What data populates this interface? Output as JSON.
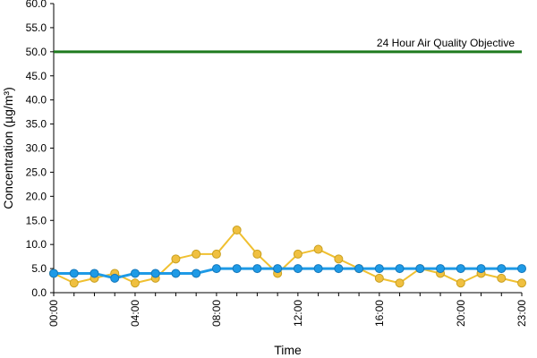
{
  "chart_data": {
    "type": "line",
    "xlabel": "Time",
    "ylabel": "Concentration (µg/m³)",
    "ylim": [
      0,
      60
    ],
    "yticks": [
      "0.0",
      "5.0",
      "10.0",
      "15.0",
      "20.0",
      "25.0",
      "30.0",
      "35.0",
      "40.0",
      "45.0",
      "50.0",
      "55.0",
      "60.0"
    ],
    "x_hours": [
      0,
      1,
      2,
      3,
      4,
      5,
      6,
      7,
      8,
      9,
      10,
      11,
      12,
      13,
      14,
      15,
      16,
      17,
      18,
      19,
      20,
      21,
      22,
      23
    ],
    "xticks": [
      {
        "hour": 0,
        "label": "00:00"
      },
      {
        "hour": 4,
        "label": "04:00"
      },
      {
        "hour": 8,
        "label": "08:00"
      },
      {
        "hour": 12,
        "label": "12:00"
      },
      {
        "hour": 16,
        "label": "16:00"
      },
      {
        "hour": 20,
        "label": "20:00"
      },
      {
        "hour": 23,
        "label": "23:00"
      }
    ],
    "series": [
      {
        "color": "#f0c030",
        "marker_color": "#f0c040",
        "values": [
          4,
          2,
          3,
          4,
          2,
          3,
          7,
          8,
          8,
          13,
          8,
          4,
          8,
          9,
          7,
          5,
          3,
          2,
          5,
          4,
          2,
          4,
          3,
          2
        ]
      },
      {
        "color": "#1e9ae6",
        "marker_color": "#1e9ae6",
        "values": [
          4,
          4,
          4,
          3,
          4,
          4,
          4,
          4,
          5,
          5,
          5,
          5,
          5,
          5,
          5,
          5,
          5,
          5,
          5,
          5,
          5,
          5,
          5,
          5
        ]
      }
    ],
    "reference_line": {
      "value": 50,
      "label": "24 Hour Air Quality Objective",
      "color": "#1f7a1f"
    },
    "grid": false
  }
}
